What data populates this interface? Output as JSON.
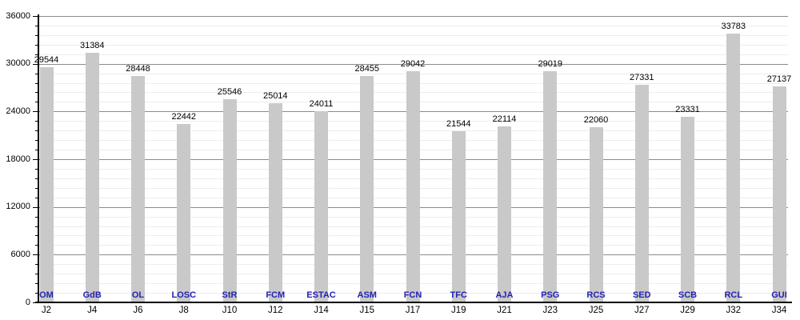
{
  "chart_data": {
    "type": "bar",
    "title": "",
    "xlabel": "",
    "ylabel": "",
    "categories": [
      "J2",
      "J4",
      "J6",
      "J8",
      "J10",
      "J12",
      "J14",
      "J15",
      "J17",
      "J19",
      "J21",
      "J23",
      "J25",
      "J27",
      "J29",
      "J32",
      "J34"
    ],
    "bar_labels": [
      "OM",
      "GdB",
      "OL",
      "LOSC",
      "StR",
      "FCM",
      "ESTAC",
      "ASM",
      "FCN",
      "TFC",
      "AJA",
      "PSG",
      "RCS",
      "SED",
      "SCB",
      "RCL",
      "GUI"
    ],
    "values": [
      29544,
      31384,
      28448,
      22442,
      25546,
      25014,
      24011,
      28455,
      29042,
      21544,
      22114,
      29019,
      22060,
      27331,
      23331,
      33783,
      27137
    ],
    "y_tick_labels": [
      "0",
      "6000",
      "12000",
      "18000",
      "24000",
      "30000",
      "36000"
    ],
    "ylim": [
      0,
      36000
    ],
    "y_major_step": 6000,
    "y_minor_step": 1200,
    "grid": true,
    "legend": false,
    "colors": {
      "bar_fill": "#c9c9c9",
      "major_gridline": "#8c8c8c",
      "minor_gridline": "#ededed",
      "axis": "#000000",
      "value_label": "#000000",
      "team_label": "#2222b2",
      "tick_label": "#000000",
      "background": "#ffffff"
    }
  }
}
